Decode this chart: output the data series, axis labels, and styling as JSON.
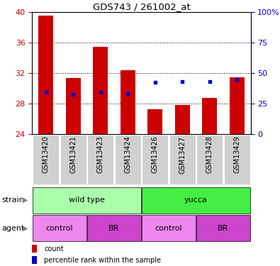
{
  "title": "GDS743 / 261002_at",
  "samples": [
    "GSM13420",
    "GSM13421",
    "GSM13423",
    "GSM13424",
    "GSM13426",
    "GSM13427",
    "GSM13428",
    "GSM13429"
  ],
  "bar_values": [
    39.5,
    31.4,
    35.4,
    32.4,
    27.3,
    27.8,
    28.8,
    31.5
  ],
  "percentile_values": [
    29.5,
    29.2,
    29.5,
    29.3,
    30.8,
    30.9,
    30.9,
    31.2
  ],
  "ymin": 24,
  "ymax": 40,
  "yticks": [
    24,
    28,
    32,
    36,
    40
  ],
  "bar_color": "#cc0000",
  "dot_color": "#0000cc",
  "tick_label_color_left": "#cc0000",
  "tick_label_color_right": "#0000cc",
  "right_ylabels": [
    "0",
    "25",
    "50",
    "75",
    "100%"
  ],
  "strain_wild_color": "#aaffaa",
  "strain_yucca_color": "#44ee44",
  "agent_control_color": "#ee88ee",
  "agent_br_color": "#cc44cc",
  "legend_count_label": "count",
  "legend_pct_label": "percentile rank within the sample",
  "gray_box_color": "#d0d0d0"
}
